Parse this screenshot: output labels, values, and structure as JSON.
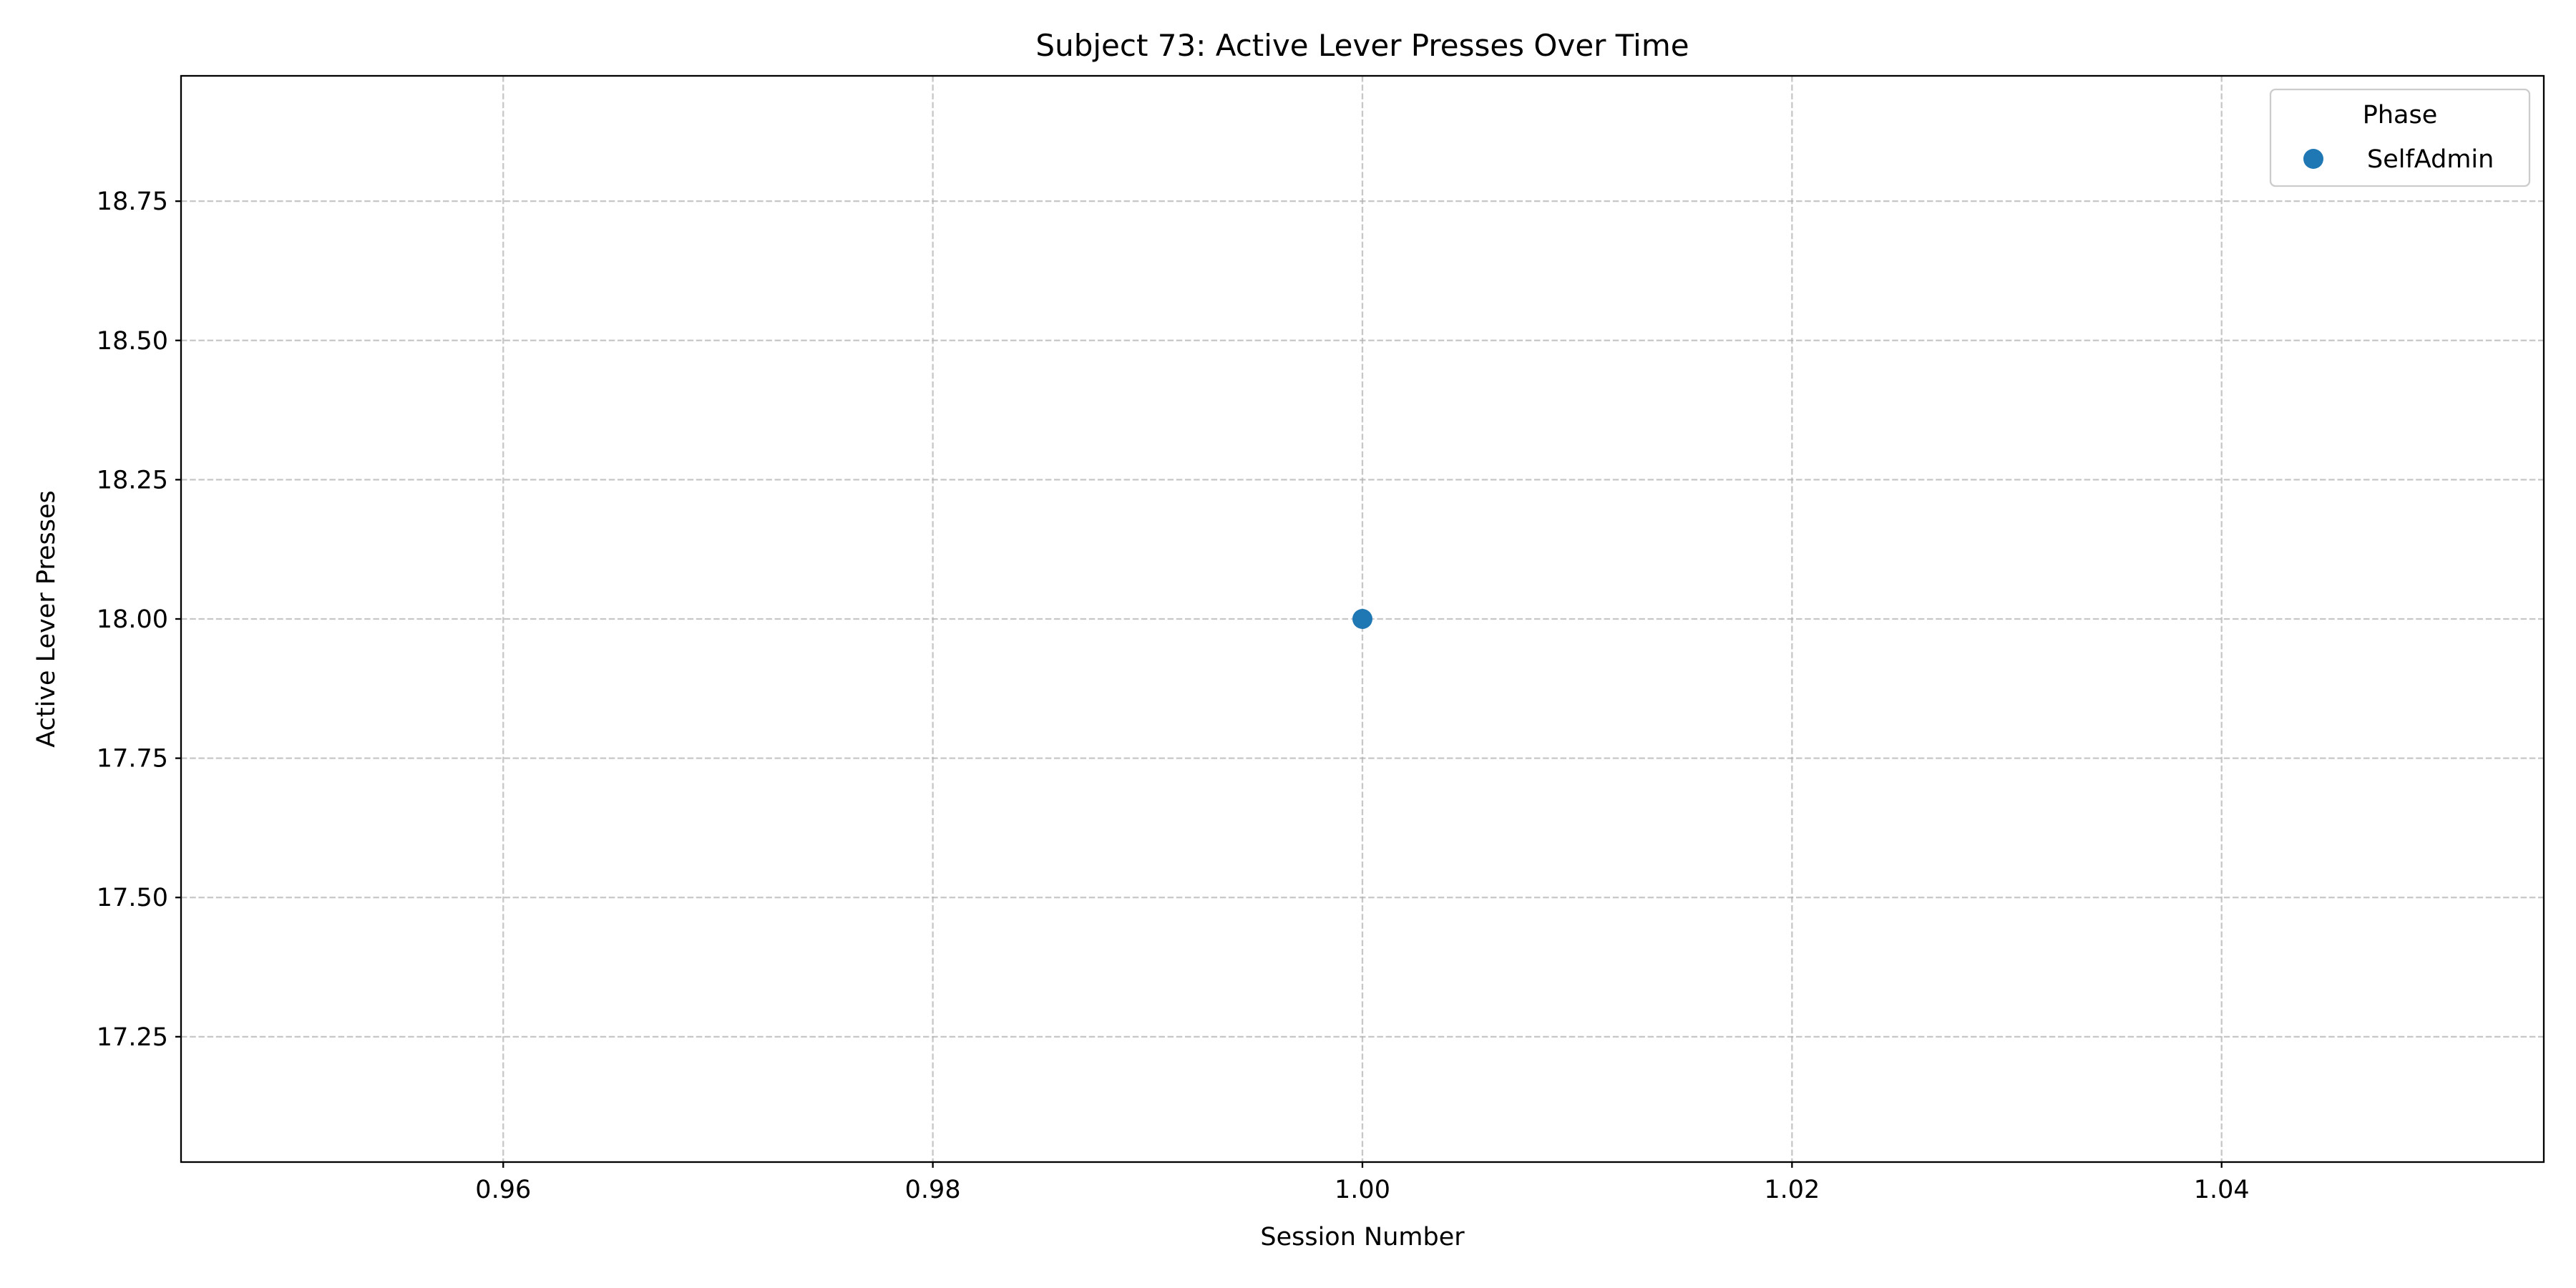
{
  "chart_data": {
    "type": "scatter",
    "title": "Subject 73: Active Lever Presses Over Time",
    "xlabel": "Session Number",
    "ylabel": "Active Lever Presses",
    "xlim": [
      0.945,
      1.055
    ],
    "ylim": [
      17.025,
      18.975
    ],
    "x_ticks": [
      0.96,
      0.98,
      1.0,
      1.02,
      1.04
    ],
    "x_tick_labels": [
      "0.96",
      "0.98",
      "1.00",
      "1.02",
      "1.04"
    ],
    "y_ticks": [
      17.25,
      17.5,
      17.75,
      18.0,
      18.25,
      18.5,
      18.75
    ],
    "y_tick_labels": [
      "17.25",
      "17.50",
      "17.75",
      "18.00",
      "18.25",
      "18.50",
      "18.75"
    ],
    "grid": true,
    "legend": {
      "title": "Phase",
      "placement": "top-right"
    },
    "series": [
      {
        "name": "SelfAdmin",
        "color": "#1f77b4",
        "marker": "circle",
        "points": [
          {
            "x": 1.0,
            "y": 18.0
          }
        ]
      }
    ]
  }
}
